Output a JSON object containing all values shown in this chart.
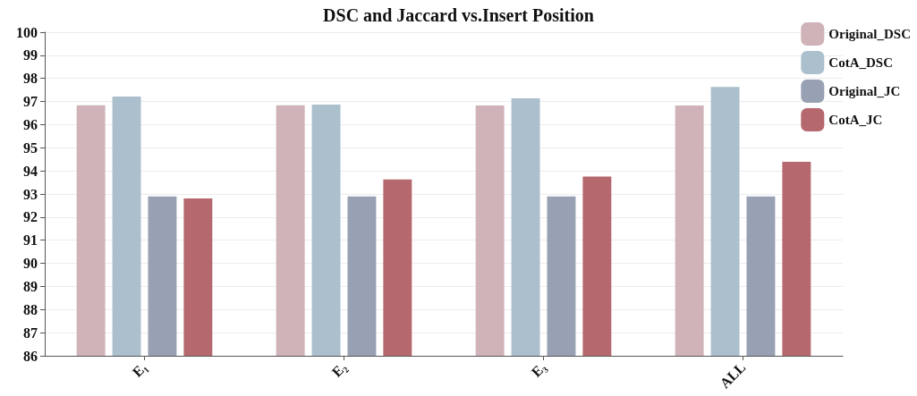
{
  "chart_data": {
    "type": "bar",
    "title": "DSC and Jaccard vs.Insert Position",
    "categories": [
      "E₁",
      "E₂",
      "E₃",
      "ALL"
    ],
    "series": [
      {
        "name": "Original_DSC",
        "color": "#cfb3b8",
        "values": [
          96.84,
          96.84,
          96.83,
          96.83
        ]
      },
      {
        "name": "CotA_DSC",
        "color": "#abbfcd",
        "values": [
          97.22,
          96.87,
          97.14,
          97.63
        ]
      },
      {
        "name": "Original_JC",
        "color": "#97a1b3",
        "values": [
          92.89,
          92.89,
          92.89,
          92.89
        ]
      },
      {
        "name": "CotA_JC",
        "color": "#b5686d",
        "values": [
          92.81,
          93.63,
          93.75,
          94.39
        ]
      }
    ],
    "ylim": [
      86,
      100
    ],
    "yticks": [
      86,
      87,
      88,
      89,
      90,
      91,
      92,
      93,
      94,
      95,
      96,
      97,
      98,
      99,
      100
    ],
    "grid": "y",
    "legend": "top right"
  }
}
